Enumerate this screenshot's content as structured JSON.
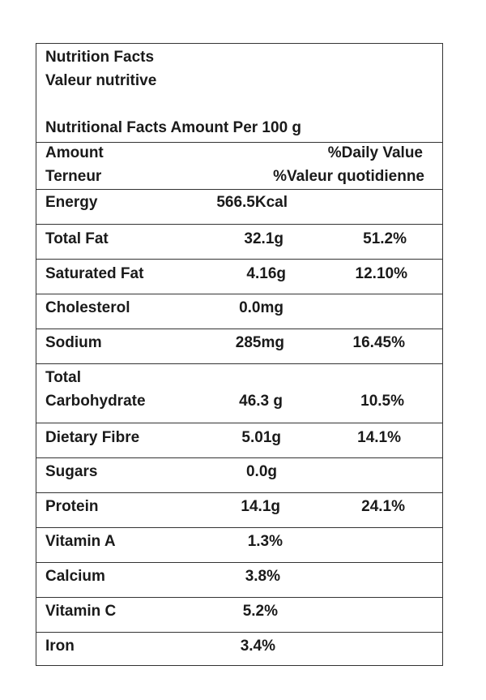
{
  "header": {
    "title_en": "Nutrition Facts",
    "title_fr": "Valeur nutritive",
    "serving": "Nutritional Facts Amount Per 100 g"
  },
  "columns": {
    "amount_en": "Amount",
    "amount_fr": "Terneur",
    "dv_en": "%Daily Value",
    "dv_fr": "%Valeur quotidienne"
  },
  "rows": [
    {
      "name": "Energy",
      "amount": "566.5Kcal",
      "dv": ""
    },
    {
      "name": "Total Fat",
      "amount": "32.1g",
      "dv": "51.2%"
    },
    {
      "name": "Saturated Fat",
      "amount": "4.16g",
      "dv": "12.10%"
    },
    {
      "name": "Cholesterol",
      "amount": "0.0mg",
      "dv": ""
    },
    {
      "name": "Sodium",
      "amount": "285mg",
      "dv": "16.45%"
    },
    {
      "name_line1": "Total",
      "name_line2": "Carbohydrate",
      "amount": "46.3 g",
      "dv": "10.5%"
    },
    {
      "name": "Dietary Fibre",
      "amount": "5.01g",
      "dv": "14.1%"
    },
    {
      "name": "Sugars",
      "amount": "0.0g",
      "dv": ""
    },
    {
      "name": "Protein",
      "amount": "14.1g",
      "dv": "24.1%"
    },
    {
      "name": "Vitamin A",
      "amount": "1.3%",
      "dv": ""
    },
    {
      "name": "Calcium",
      "amount": "3.8%",
      "dv": ""
    },
    {
      "name": "Vitamin C",
      "amount": "5.2%",
      "dv": ""
    },
    {
      "name": "Iron",
      "amount": "3.4%",
      "dv": ""
    }
  ]
}
